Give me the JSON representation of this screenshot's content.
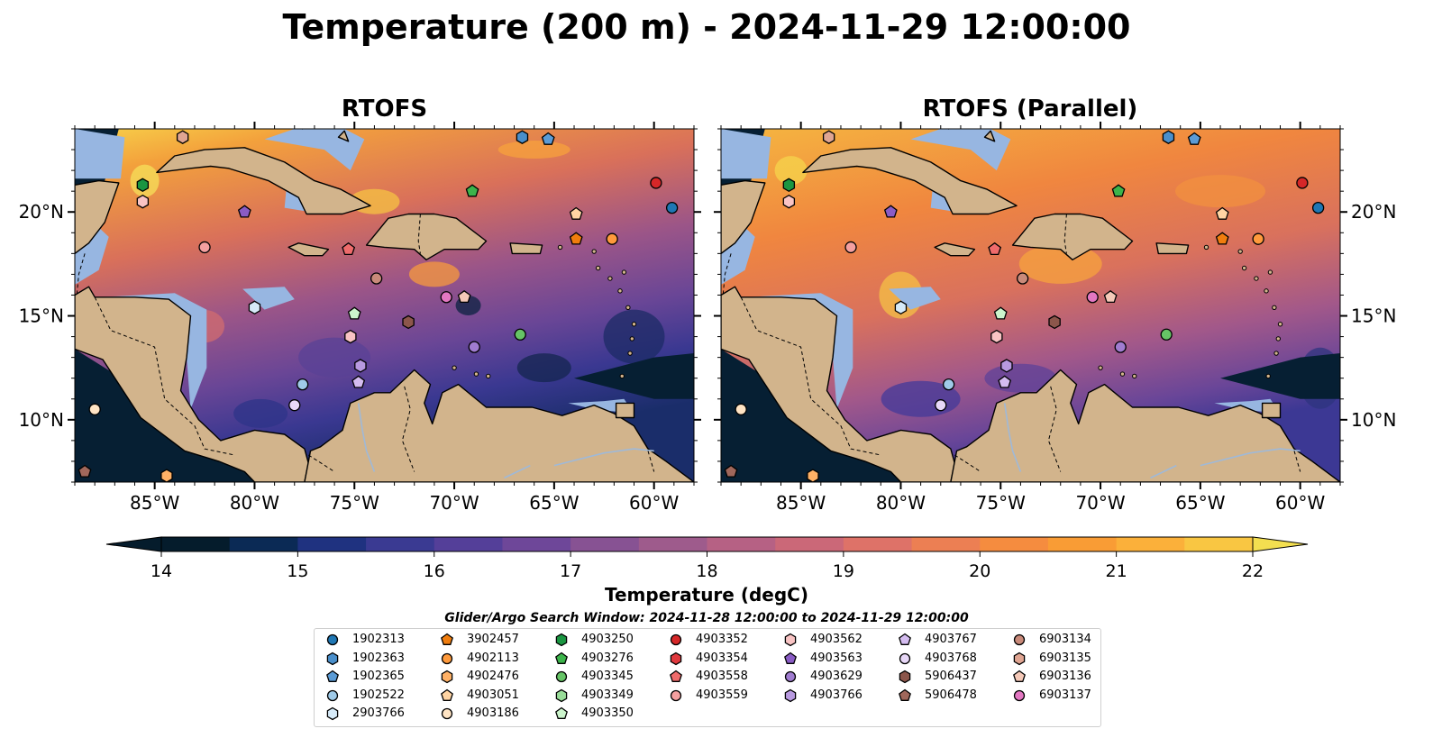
{
  "title": "Temperature (200 m) - 2024-11-29 12:00:00",
  "panels": [
    {
      "title": "RTOFS",
      "variant": "rtofs"
    },
    {
      "title": "RTOFS (Parallel)",
      "variant": "parallel"
    }
  ],
  "map": {
    "lon_range": [
      -89,
      -58
    ],
    "lat_range": [
      7,
      24
    ],
    "lon_ticks": [
      "85°W",
      "80°W",
      "75°W",
      "70°W",
      "65°W",
      "60°W"
    ],
    "lon_tick_values": [
      -85,
      -80,
      -75,
      -70,
      -65,
      -60
    ],
    "lat_ticks": [
      "10°N",
      "15°N",
      "20°N"
    ],
    "lat_tick_values": [
      10,
      15,
      20
    ],
    "land_color": "#d2b48c",
    "shelf_color": "#97b6e1"
  },
  "colorbar": {
    "label": "Temperature (degC)",
    "min": 14,
    "max": 22,
    "ticks": [
      "14",
      "15",
      "16",
      "17",
      "18",
      "19",
      "20",
      "21",
      "22"
    ],
    "extend": "both",
    "colors": [
      "#051c2c",
      "#0b2a55",
      "#1f3280",
      "#3a3a92",
      "#543f99",
      "#6e4799",
      "#875293",
      "#9e5b8c",
      "#b66184",
      "#cb6878",
      "#de7268",
      "#ec7f53",
      "#f58c3f",
      "#f99c35",
      "#fbb03a",
      "#f9c642",
      "#f3df50"
    ]
  },
  "legend": {
    "title": "Glider/Argo Search Window: 2024-11-28 12:00:00 to 2024-11-29 12:00:00",
    "columns": [
      [
        {
          "id": "1902313",
          "color": "#1f77b4",
          "shape": "circle"
        },
        {
          "id": "1902363",
          "color": "#4a8fcb",
          "shape": "hexagon"
        },
        {
          "id": "1902365",
          "color": "#5b9bd5",
          "shape": "pentagon"
        },
        {
          "id": "1902522",
          "color": "#9fcae8",
          "shape": "circle"
        },
        {
          "id": "2903766",
          "color": "#d6eaf8",
          "shape": "hexagon"
        }
      ],
      [
        {
          "id": "3902457",
          "color": "#f07d0e",
          "shape": "pentagon"
        },
        {
          "id": "4902113",
          "color": "#ff9a3c",
          "shape": "circle"
        },
        {
          "id": "4902476",
          "color": "#ffb166",
          "shape": "hexagon"
        },
        {
          "id": "4903051",
          "color": "#ffd4a3",
          "shape": "pentagon"
        },
        {
          "id": "4903186",
          "color": "#ffe4c4",
          "shape": "circle"
        }
      ],
      [
        {
          "id": "4903250",
          "color": "#1a9641",
          "shape": "hexagon"
        },
        {
          "id": "4903276",
          "color": "#3cb44b",
          "shape": "pentagon"
        },
        {
          "id": "4903345",
          "color": "#66c466",
          "shape": "circle"
        },
        {
          "id": "4903349",
          "color": "#99dd99",
          "shape": "hexagon"
        },
        {
          "id": "4903350",
          "color": "#ccf5cc",
          "shape": "pentagon"
        }
      ],
      [
        {
          "id": "4903352",
          "color": "#d62728",
          "shape": "circle"
        },
        {
          "id": "4903354",
          "color": "#e0393e",
          "shape": "hexagon"
        },
        {
          "id": "4903558",
          "color": "#ef6b6b",
          "shape": "pentagon"
        },
        {
          "id": "4903559",
          "color": "#f4a0a0",
          "shape": "circle"
        }
      ],
      [
        {
          "id": "4903562",
          "color": "#f9c4c4",
          "shape": "hexagon"
        },
        {
          "id": "4903563",
          "color": "#8a5cc5",
          "shape": "pentagon"
        },
        {
          "id": "4903629",
          "color": "#a07cd0",
          "shape": "circle"
        },
        {
          "id": "4903766",
          "color": "#b89ae0",
          "shape": "hexagon"
        }
      ],
      [
        {
          "id": "4903767",
          "color": "#d4bcf0",
          "shape": "pentagon"
        },
        {
          "id": "4903768",
          "color": "#e8d8f8",
          "shape": "circle"
        },
        {
          "id": "5906437",
          "color": "#8c564b",
          "shape": "hexagon"
        },
        {
          "id": "5906478",
          "color": "#a0675b",
          "shape": "pentagon"
        }
      ],
      [
        {
          "id": "6903134",
          "color": "#c98a7a",
          "shape": "circle"
        },
        {
          "id": "6903135",
          "color": "#e0a592",
          "shape": "hexagon"
        },
        {
          "id": "6903136",
          "color": "#f5c9b8",
          "shape": "pentagon"
        },
        {
          "id": "6903137",
          "color": "#e377c2",
          "shape": "circle"
        }
      ]
    ]
  },
  "markers": [
    {
      "id": "1902313",
      "lon": -59.1,
      "lat": 20.2
    },
    {
      "id": "1902363",
      "lon": -66.6,
      "lat": 23.6
    },
    {
      "id": "1902365",
      "lon": -65.3,
      "lat": 23.5
    },
    {
      "id": "1902522",
      "lon": -77.6,
      "lat": 11.7
    },
    {
      "id": "2903766",
      "lon": -80.0,
      "lat": 15.4
    },
    {
      "id": "3902457",
      "lon": -63.9,
      "lat": 18.7
    },
    {
      "id": "4902113",
      "lon": -62.1,
      "lat": 18.7
    },
    {
      "id": "4903186",
      "lon": -88.0,
      "lat": 10.5
    },
    {
      "id": "4903051",
      "lon": -63.9,
      "lat": 19.9
    },
    {
      "id": "4902476",
      "lon": -84.4,
      "lat": 7.3
    },
    {
      "id": "4903250",
      "lon": -85.6,
      "lat": 21.3
    },
    {
      "id": "4903276",
      "lon": -69.1,
      "lat": 21.0
    },
    {
      "id": "4903345",
      "lon": -66.7,
      "lat": 14.1
    },
    {
      "id": "4903350",
      "lon": -75.0,
      "lat": 15.1
    },
    {
      "id": "4903352",
      "lon": -59.9,
      "lat": 21.4
    },
    {
      "id": "4903558",
      "lon": -75.3,
      "lat": 18.2
    },
    {
      "id": "4903559",
      "lon": -82.5,
      "lat": 18.3
    },
    {
      "id": "4903562",
      "lon": -85.6,
      "lat": 20.5
    },
    {
      "id": "4903562",
      "lon": -75.2,
      "lat": 14.0
    },
    {
      "id": "4903563",
      "lon": -80.5,
      "lat": 20.0
    },
    {
      "id": "4903629",
      "lon": -69.0,
      "lat": 13.5
    },
    {
      "id": "4903766",
      "lon": -74.7,
      "lat": 12.6
    },
    {
      "id": "4903767",
      "lon": -74.8,
      "lat": 11.8
    },
    {
      "id": "4903768",
      "lon": -78.0,
      "lat": 10.7
    },
    {
      "id": "5906437",
      "lon": -72.3,
      "lat": 14.7
    },
    {
      "id": "5906478",
      "lon": -88.5,
      "lat": 7.5
    },
    {
      "id": "6903134",
      "lon": -73.9,
      "lat": 16.8
    },
    {
      "id": "6903135",
      "lon": -83.6,
      "lat": 23.6
    },
    {
      "id": "6903136",
      "lon": -69.5,
      "lat": 15.9
    },
    {
      "id": "6903137",
      "lon": -70.4,
      "lat": 15.9
    }
  ]
}
